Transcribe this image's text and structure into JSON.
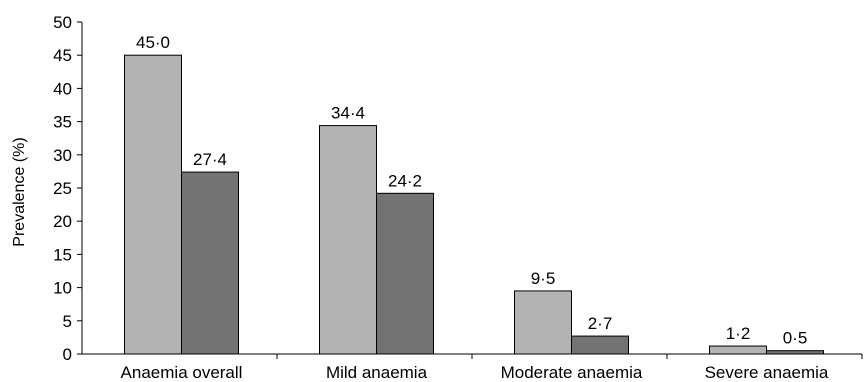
{
  "chart_data": {
    "type": "bar",
    "title": "",
    "xlabel": "",
    "ylabel": "Prevalence (%)",
    "ylim": [
      0,
      50
    ],
    "yticks": [
      0,
      5,
      10,
      15,
      20,
      25,
      30,
      35,
      40,
      45,
      50
    ],
    "grid": false,
    "legend": "none",
    "categories": [
      "Anaemia overall",
      "Mild anaemia",
      "Moderate anaemia",
      "Severe anaemia"
    ],
    "series": [
      {
        "values": [
          45.0,
          34.4,
          9.5,
          1.2
        ],
        "labels": [
          "45·0",
          "34·4",
          "9·5",
          "1·2"
        ],
        "color": "#b3b3b3"
      },
      {
        "values": [
          27.4,
          24.2,
          2.7,
          0.5
        ],
        "labels": [
          "27·4",
          "24·2",
          "2·7",
          "0·5"
        ],
        "color": "#737373"
      }
    ]
  }
}
